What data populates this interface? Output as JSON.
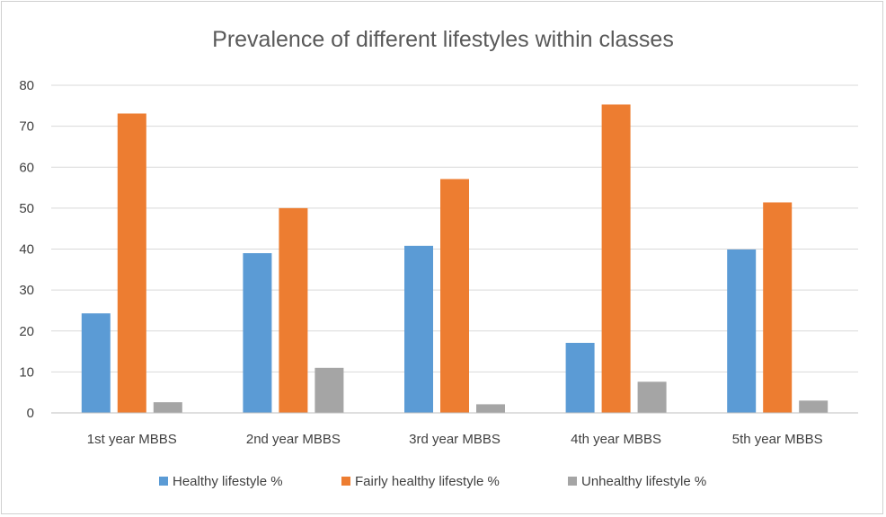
{
  "chart_data": {
    "type": "bar",
    "title": "Prevalence of different lifestyles within classes",
    "categories": [
      "1st year MBBS",
      "2nd year MBBS",
      "3rd year MBBS",
      "4th year MBBS",
      "5th year MBBS"
    ],
    "series": [
      {
        "name": "Healthy lifestyle %",
        "color": "#5b9bd5",
        "values": [
          24.3,
          39,
          40.8,
          17.1,
          39.9
        ]
      },
      {
        "name": "Fairly healthy lifestyle %",
        "color": "#ed7d31",
        "values": [
          73.1,
          50,
          57.1,
          75.3,
          51.4
        ]
      },
      {
        "name": "Unhealthy lifestyle %",
        "color": "#a5a5a5",
        "values": [
          2.6,
          11,
          2.1,
          7.6,
          3
        ]
      }
    ],
    "xlabel": "",
    "ylabel": "",
    "ylim": [
      0,
      80
    ],
    "yticks": [
      "0",
      "10",
      "20",
      "30",
      "40",
      "50",
      "60",
      "70",
      "80"
    ],
    "grid": true,
    "legend_position": "bottom"
  }
}
